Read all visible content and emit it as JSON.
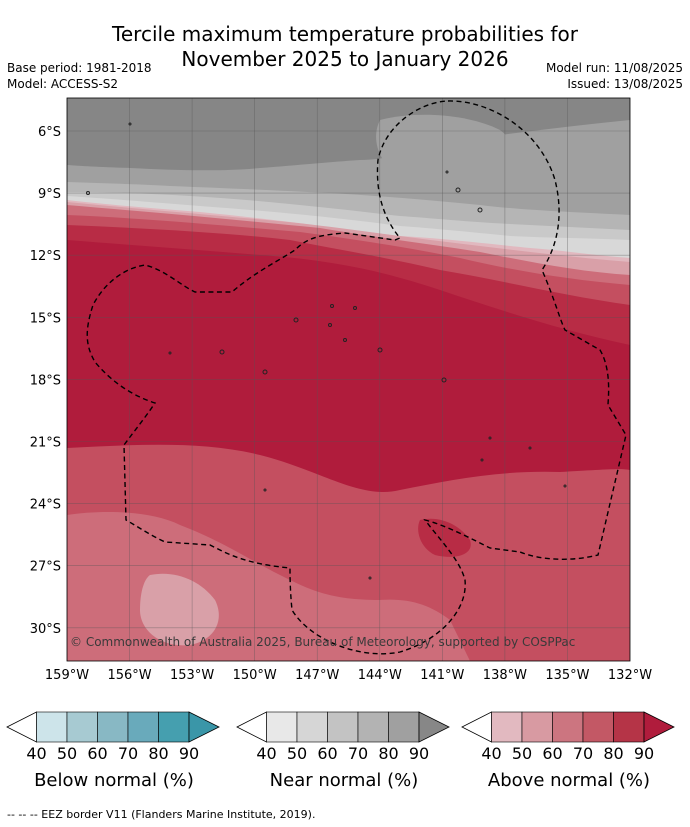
{
  "title_line1": "Tercile maximum temperature probabilities for",
  "title_line2": "November 2025 to January 2026",
  "base_period": "Base period: 1981-2018",
  "model": "Model: ACCESS-S2",
  "model_run": "Model run: 11/08/2025",
  "issued": "Issued: 13/08/2025",
  "copyright": "© Commonwealth of Australia 2025, Bureau of Meteorology, supported by COSPPac",
  "footnote": "-- -- -- EEZ border V11 (Flanders Marine Institute, 2019).",
  "map": {
    "lon_labels": [
      "159°W",
      "156°W",
      "153°W",
      "150°W",
      "147°W",
      "144°W",
      "141°W",
      "138°W",
      "135°W",
      "132°W"
    ],
    "lat_labels": [
      "6°S",
      "9°S",
      "12°S",
      "15°S",
      "18°S",
      "21°S",
      "24°S",
      "27°S",
      "30°S"
    ]
  },
  "legends": [
    {
      "label": "Below normal (%)",
      "colors": [
        "#cde4ea",
        "#a7cad2",
        "#88b8c4",
        "#69aabb",
        "#459faf",
        "#3a96a8"
      ],
      "ticks": [
        "40",
        "50",
        "60",
        "70",
        "80",
        "90"
      ]
    },
    {
      "label": "Near normal (%)",
      "colors": [
        "#e8e8e8",
        "#d6d6d6",
        "#c3c3c3",
        "#b3b3b3",
        "#a0a0a0",
        "#878787"
      ],
      "ticks": [
        "40",
        "50",
        "60",
        "70",
        "80",
        "90"
      ]
    },
    {
      "label": "Above normal (%)",
      "colors": [
        "#e2b9c0",
        "#d89aa2",
        "#cc7580",
        "#c35865",
        "#b53447",
        "#b01c3c"
      ],
      "ticks": [
        "40",
        "50",
        "60",
        "70",
        "80",
        "90"
      ]
    }
  ],
  "colors": {
    "near_90": "#868686",
    "near_80": "#a0a0a0",
    "near_70": "#b5b5b5",
    "near_60": "#c9c9c9",
    "near_50": "#d8d8d8",
    "above_40": "#e1b8bf",
    "above_50": "#d9a0a8",
    "above_60": "#cd6d7a",
    "above_70": "#c44f60",
    "above_80": "#b82c45",
    "above_90": "#b01c3c"
  }
}
